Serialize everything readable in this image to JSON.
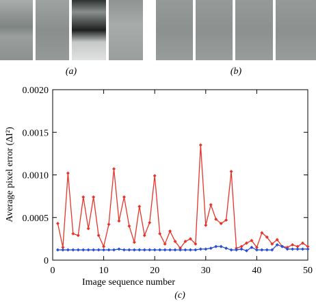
{
  "panel_labels": [
    "(a)",
    "(b)"
  ],
  "chart_data": {
    "type": "line",
    "ylabel": "Average pixel error (ΔI²)",
    "xlabel": "Image sequence number",
    "caption": "(c)",
    "x": [
      1,
      2,
      3,
      4,
      5,
      6,
      7,
      8,
      9,
      10,
      11,
      12,
      13,
      14,
      15,
      16,
      17,
      18,
      19,
      20,
      21,
      22,
      23,
      24,
      25,
      26,
      27,
      28,
      29,
      30,
      31,
      32,
      33,
      34,
      35,
      36,
      37,
      38,
      39,
      40,
      41,
      42,
      43,
      44,
      45,
      46,
      47,
      48,
      49,
      50
    ],
    "series": [
      {
        "color": "#e8332a",
        "values": [
          0.00043,
          0.00015,
          0.00102,
          0.00031,
          0.00029,
          0.00074,
          0.00037,
          0.00074,
          0.00029,
          0.00016,
          0.00042,
          0.00107,
          0.00046,
          0.00074,
          0.0004,
          0.00021,
          0.00063,
          0.00029,
          0.00044,
          0.00099,
          0.00031,
          0.00019,
          0.00034,
          0.00022,
          0.00014,
          0.00022,
          0.00025,
          0.00019,
          0.00135,
          0.00041,
          0.00065,
          0.00048,
          0.00043,
          0.00047,
          0.00104,
          0.00014,
          0.00016,
          0.0002,
          0.00023,
          0.00015,
          0.00032,
          0.00027,
          0.00019,
          0.00024,
          0.00016,
          0.00015,
          0.00018,
          0.00016,
          0.0002,
          0.00016
        ]
      },
      {
        "color": "#2a4fd6",
        "values": [
          0.00012,
          0.00012,
          0.00012,
          0.00012,
          0.00012,
          0.00012,
          0.00012,
          0.00012,
          0.00012,
          0.00012,
          0.00012,
          0.00012,
          0.00013,
          0.00012,
          0.00012,
          0.00012,
          0.00012,
          0.00012,
          0.00012,
          0.00012,
          0.00012,
          0.00012,
          0.00012,
          0.00012,
          0.00012,
          0.00012,
          0.00012,
          0.00012,
          0.00013,
          0.00013,
          0.00014,
          0.00016,
          0.00016,
          0.00014,
          0.00012,
          0.00012,
          0.00013,
          0.00011,
          0.00015,
          0.00012,
          0.00012,
          0.00012,
          0.00012,
          0.00018,
          0.00016,
          0.00013,
          0.00013,
          0.00013,
          0.00013,
          0.00013
        ]
      }
    ],
    "xlim": [
      0,
      50
    ],
    "xticks": [
      0,
      10,
      20,
      30,
      40,
      50
    ],
    "ylim": [
      0,
      0.002
    ],
    "yticks": [
      0,
      0.0005,
      {
        "value": 0.001,
        "label": "0.0010"
      },
      0.0015,
      {
        "value": 0.002,
        "label": "0.0020"
      }
    ]
  }
}
